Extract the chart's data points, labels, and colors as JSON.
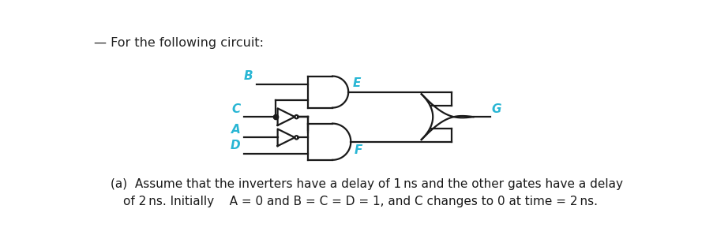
{
  "bg_color": "#ffffff",
  "label_color": "#29b6d4",
  "wire_color": "#1a1a1a",
  "title_text": "For the following circuit:",
  "caption_line1": "(a)  Assume that the inverters have a delay of 1 ns and the other gates have a delay",
  "caption_line2": "       of 2 ns. Initially A = 0 and B = C = D = 1, and C changes to 0 at time = 2 ns.",
  "title_fontsize": 11.5,
  "caption_fontsize": 11,
  "label_fontsize": 11
}
